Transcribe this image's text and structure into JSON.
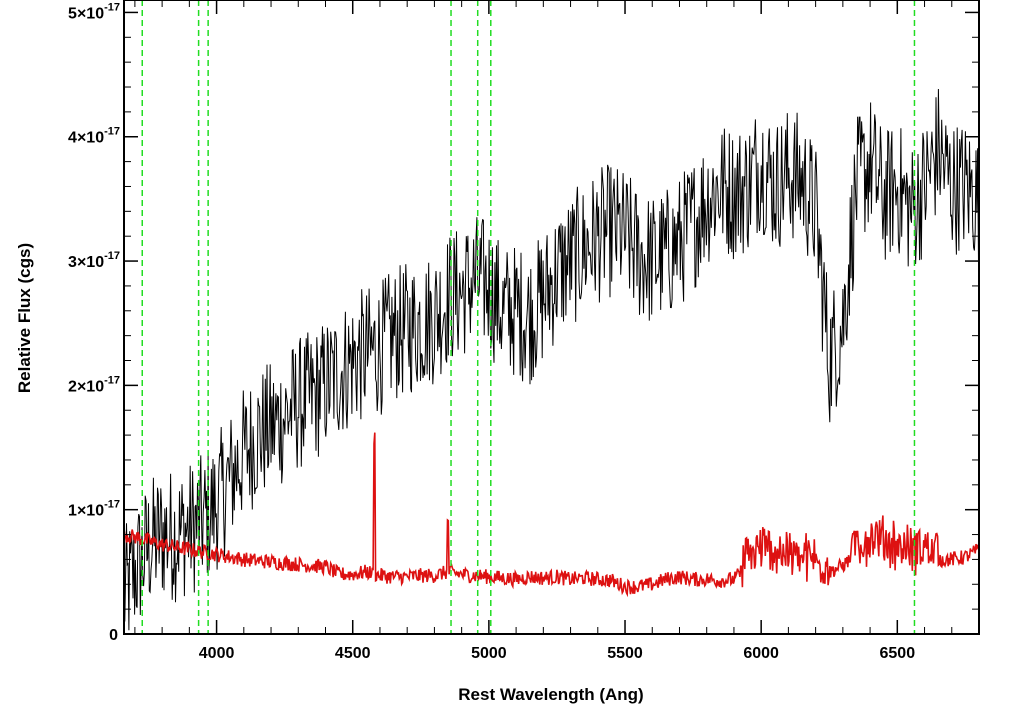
{
  "chart_data": {
    "type": "line",
    "title": "",
    "xlabel": "Rest Wavelength (Ang)",
    "ylabel": "Relative Flux (cgs)",
    "xlim": [
      3660,
      6800
    ],
    "ylim": [
      0,
      5.1e-17
    ],
    "x_ticks": [
      {
        "value": 4000,
        "label": "4000"
      },
      {
        "value": 4500,
        "label": "4500"
      },
      {
        "value": 5000,
        "label": "5000"
      },
      {
        "value": 5500,
        "label": "5500"
      },
      {
        "value": 6000,
        "label": "6000"
      },
      {
        "value": 6500,
        "label": "6500"
      }
    ],
    "y_ticks": [
      {
        "value": 0,
        "label": "0",
        "exponent": ""
      },
      {
        "value": 1e-17,
        "label": "1×10",
        "exponent": "-17"
      },
      {
        "value": 2e-17,
        "label": "2×10",
        "exponent": "-17"
      },
      {
        "value": 3e-17,
        "label": "3×10",
        "exponent": "-17"
      },
      {
        "value": 4e-17,
        "label": "4×10",
        "exponent": "-17"
      },
      {
        "value": 5e-17,
        "label": "5×10",
        "exponent": "-17"
      }
    ],
    "vertical_lines": {
      "color": "#22dd22",
      "style": "dashed",
      "x": [
        3727,
        3934,
        3969,
        4861,
        4959,
        5007,
        6563
      ]
    },
    "series": [
      {
        "color": "#000000",
        "x": [
          3660,
          3700,
          3750,
          3800,
          3850,
          3900,
          3950,
          4000,
          4050,
          4100,
          4150,
          4200,
          4250,
          4300,
          4350,
          4400,
          4450,
          4500,
          4550,
          4600,
          4650,
          4700,
          4750,
          4800,
          4850,
          4900,
          4950,
          5000,
          5050,
          5100,
          5150,
          5200,
          5250,
          5300,
          5350,
          5400,
          5450,
          5500,
          5550,
          5600,
          5650,
          5700,
          5750,
          5800,
          5850,
          5900,
          5950,
          6000,
          6050,
          6100,
          6150,
          6200,
          6250,
          6300,
          6350,
          6400,
          6450,
          6500,
          6550,
          6600,
          6650,
          6700,
          6750,
          6800
        ],
        "values": [
          3e-18,
          5e-18,
          7e-18,
          8e-18,
          8e-18,
          8.5e-18,
          9e-18,
          1.05e-17,
          1.25e-17,
          1.45e-17,
          1.6e-17,
          1.65e-17,
          1.75e-17,
          1.85e-17,
          1.9e-17,
          2e-17,
          2.1e-17,
          2.2e-17,
          2.25e-17,
          2.3e-17,
          2.4e-17,
          2.45e-17,
          2.5e-17,
          2.55e-17,
          2.7e-17,
          2.75e-17,
          2.85e-17,
          2.8e-17,
          2.6e-17,
          2.6e-17,
          2.55e-17,
          2.7e-17,
          2.9e-17,
          3e-17,
          3.1e-17,
          3.2e-17,
          3.25e-17,
          3.2e-17,
          3.05e-17,
          3e-17,
          3.05e-17,
          3.15e-17,
          3.3e-17,
          3.5e-17,
          3.6e-17,
          3.55e-17,
          3.6e-17,
          3.8e-17,
          3.6e-17,
          3.7e-17,
          3.65e-17,
          3.4e-17,
          2.2e-17,
          2.5e-17,
          3.6e-17,
          3.8e-17,
          3.5e-17,
          3.6e-17,
          3.4e-17,
          3.6e-17,
          3.9e-17,
          3.6e-17,
          3.6e-17,
          3.5e-17
        ]
      },
      {
        "color": "#dd1111",
        "x": [
          3660,
          3700,
          3750,
          3800,
          3850,
          3900,
          3950,
          4000,
          4050,
          4100,
          4150,
          4200,
          4250,
          4300,
          4350,
          4400,
          4450,
          4500,
          4550,
          4600,
          4650,
          4700,
          4750,
          4800,
          4850,
          4900,
          4950,
          5000,
          5050,
          5100,
          5150,
          5200,
          5250,
          5300,
          5350,
          5400,
          5450,
          5500,
          5550,
          5600,
          5650,
          5700,
          5750,
          5800,
          5850,
          5900,
          5950,
          6000,
          6050,
          6100,
          6150,
          6200,
          6250,
          6300,
          6350,
          6400,
          6450,
          6500,
          6550,
          6600,
          6650,
          6700,
          6750,
          6800
        ],
        "values": [
          8e-18,
          7.8e-18,
          7.5e-18,
          7.2e-18,
          7e-18,
          6.8e-18,
          6.6e-18,
          6.4e-18,
          6.2e-18,
          6e-18,
          5.9e-18,
          5.8e-18,
          5.7e-18,
          5.6e-18,
          5.5e-18,
          5.4e-18,
          4.8e-18,
          4.8e-18,
          5e-18,
          4.7e-18,
          4.6e-18,
          4.6e-18,
          4.7e-18,
          4.7e-18,
          5e-18,
          4.8e-18,
          4.7e-18,
          4.6e-18,
          4.5e-18,
          4.4e-18,
          4.6e-18,
          4.5e-18,
          4.6e-18,
          4.4e-18,
          4.5e-18,
          4.4e-18,
          4.3e-18,
          3.8e-18,
          3.8e-18,
          4e-18,
          4.4e-18,
          4.6e-18,
          4.4e-18,
          4.4e-18,
          4.3e-18,
          4.4e-18,
          5.5e-18,
          6.2e-18,
          6e-18,
          5.8e-18,
          5.5e-18,
          5.2e-18,
          5e-18,
          5.5e-18,
          6.5e-18,
          7e-18,
          6.8e-18,
          6.5e-18,
          6e-18,
          6.2e-18,
          6e-18,
          6e-18,
          6.2e-18,
          6.8e-18
        ]
      }
    ]
  }
}
